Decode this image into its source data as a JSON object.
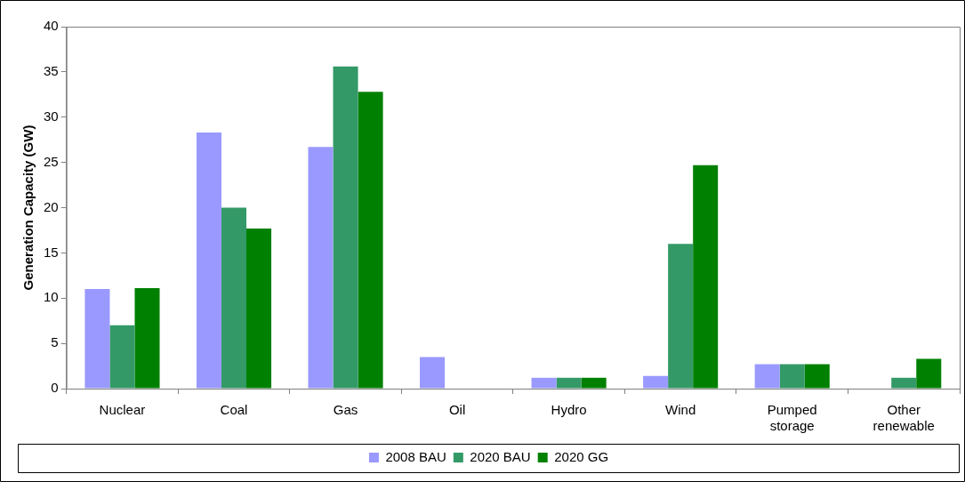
{
  "chart_data": {
    "type": "bar",
    "ylabel": "Generation Capacity (GW)",
    "categories": [
      "Nuclear",
      "Coal",
      "Gas",
      "Oil",
      "Hydro",
      "Wind",
      "Pumped storage",
      "Other renewable"
    ],
    "series": [
      {
        "name": "2008 BAU",
        "color": "#9999ff",
        "values": [
          11,
          28.3,
          26.7,
          3.5,
          1.2,
          1.4,
          2.7,
          0
        ]
      },
      {
        "name": "2020 BAU",
        "color": "#339966",
        "values": [
          7,
          20,
          35.6,
          0,
          1.2,
          16,
          2.7,
          1.2
        ]
      },
      {
        "name": "2020 GG",
        "color": "#008000",
        "values": [
          11.1,
          17.7,
          32.8,
          0,
          1.2,
          24.7,
          2.7,
          3.3
        ]
      }
    ],
    "ylim": [
      0,
      40
    ],
    "yticks": [
      0,
      5,
      10,
      15,
      20,
      25,
      30,
      35,
      40
    ],
    "grid": false,
    "legend": "bottom"
  }
}
